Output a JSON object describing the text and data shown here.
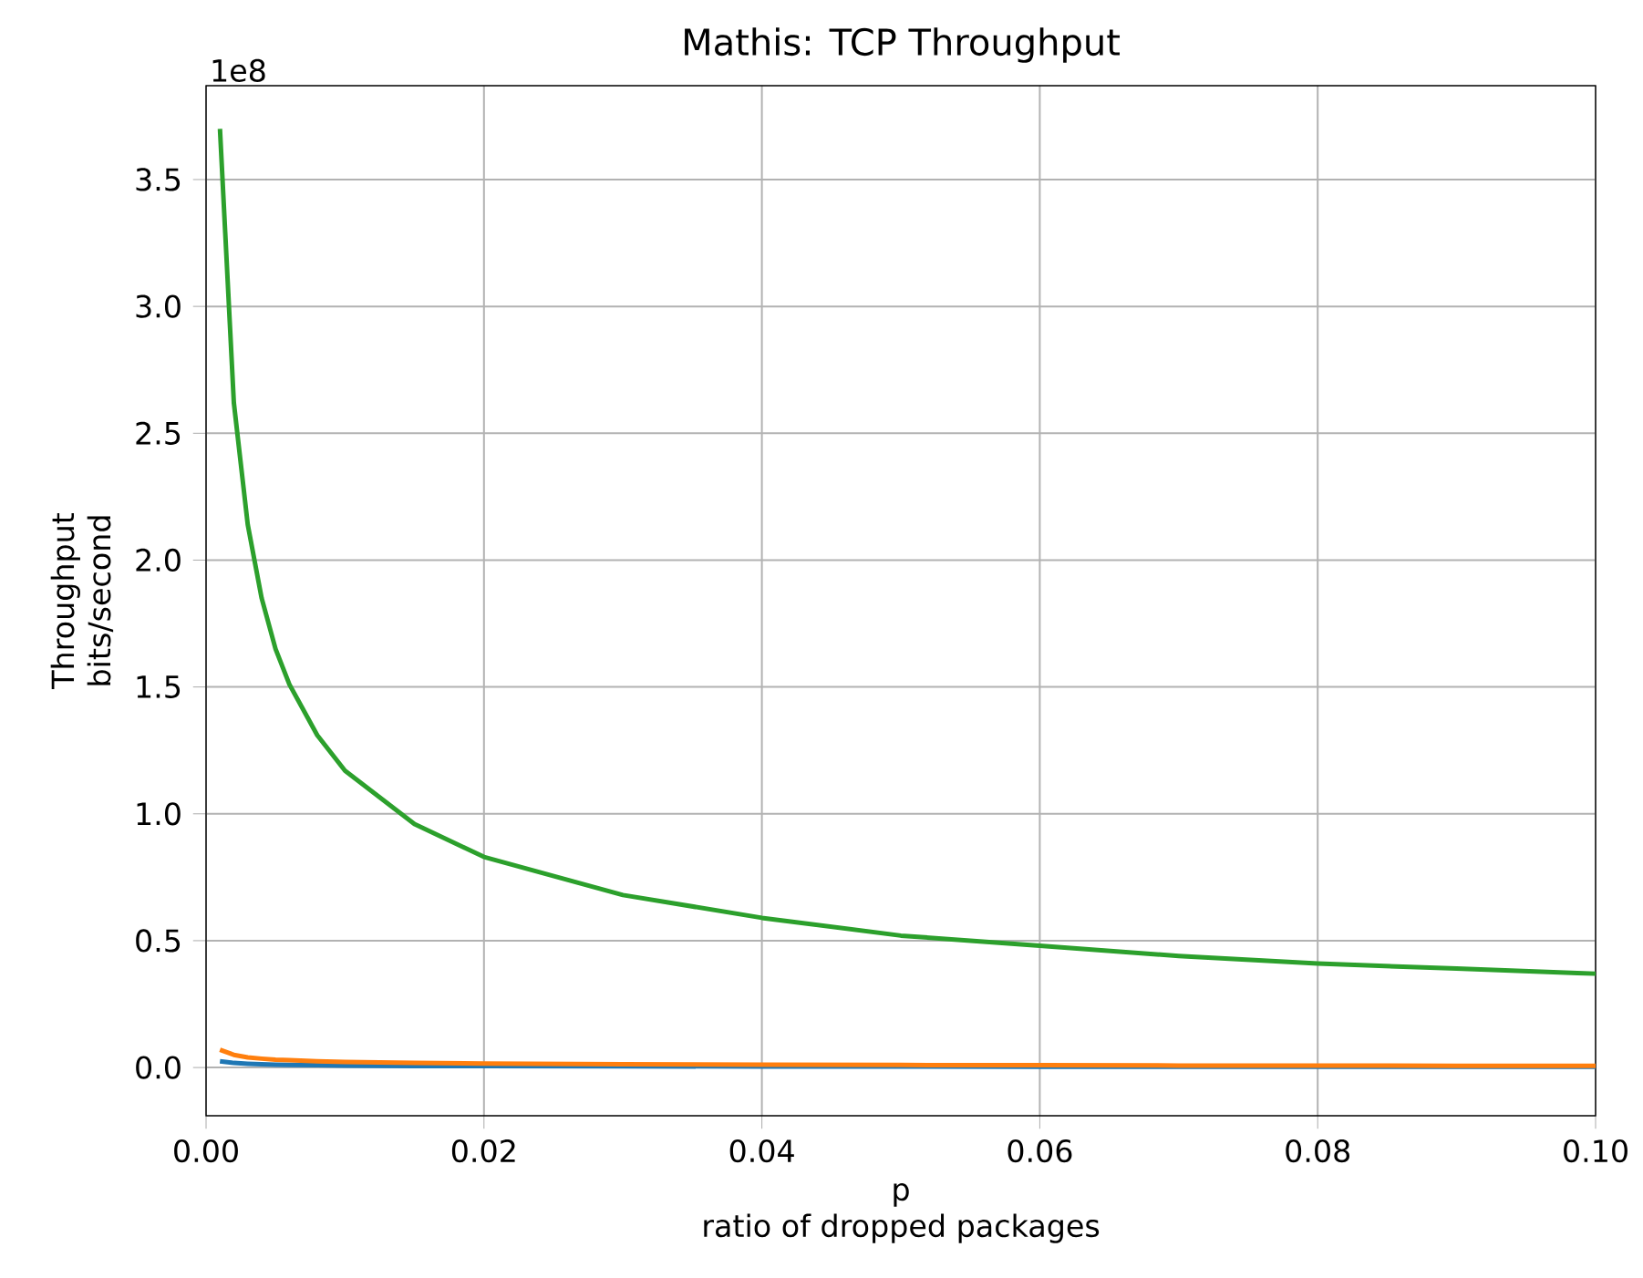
{
  "chart_data": {
    "type": "line",
    "title": "Mathis: TCP Throughput",
    "xlabel": [
      "p",
      "ratio of dropped packages"
    ],
    "ylabel": [
      "Throughput",
      "bits/second"
    ],
    "annotations": [
      "1e8"
    ],
    "x": [
      0.001,
      0.002,
      0.003,
      0.004,
      0.005,
      0.006,
      0.008,
      0.01,
      0.015,
      0.02,
      0.03,
      0.04,
      0.05,
      0.06,
      0.07,
      0.08,
      0.09,
      0.1
    ],
    "series": [
      {
        "color": "#1f77b4",
        "values": [
          0.025,
          0.018,
          0.015,
          0.013,
          0.011,
          0.01,
          0.009,
          0.008,
          0.006,
          0.006,
          0.005,
          0.004,
          0.004,
          0.003,
          0.003,
          0.003,
          0.003,
          0.003
        ]
      },
      {
        "color": "#ff7f0e",
        "values": [
          0.07,
          0.05,
          0.04,
          0.035,
          0.031,
          0.029,
          0.025,
          0.022,
          0.018,
          0.016,
          0.013,
          0.011,
          0.01,
          0.009,
          0.008,
          0.008,
          0.007,
          0.007
        ]
      },
      {
        "color": "#2ca02c",
        "values": [
          3.7,
          2.62,
          2.14,
          1.85,
          1.65,
          1.51,
          1.31,
          1.17,
          0.96,
          0.83,
          0.68,
          0.59,
          0.52,
          0.48,
          0.44,
          0.41,
          0.39,
          0.37
        ]
      }
    ],
    "xlim": [
      0,
      0.1
    ],
    "ylim": [
      -0.19,
      3.87
    ],
    "xticks": [
      {
        "value": 0,
        "label": "0.00"
      },
      {
        "value": 0.02,
        "label": "0.02"
      },
      {
        "value": 0.04,
        "label": "0.04"
      },
      {
        "value": 0.06,
        "label": "0.06"
      },
      {
        "value": 0.08,
        "label": "0.08"
      },
      {
        "value": 0.1,
        "label": "0.10"
      }
    ],
    "yticks": [
      {
        "value": 0,
        "label": "0.0"
      },
      0.5,
      {
        "value": 1,
        "label": "1.0"
      },
      1.5,
      {
        "value": 2,
        "label": "2.0"
      },
      2.5,
      {
        "value": 3,
        "label": "3.0"
      },
      3.5
    ],
    "grid": true,
    "marker": "none"
  }
}
